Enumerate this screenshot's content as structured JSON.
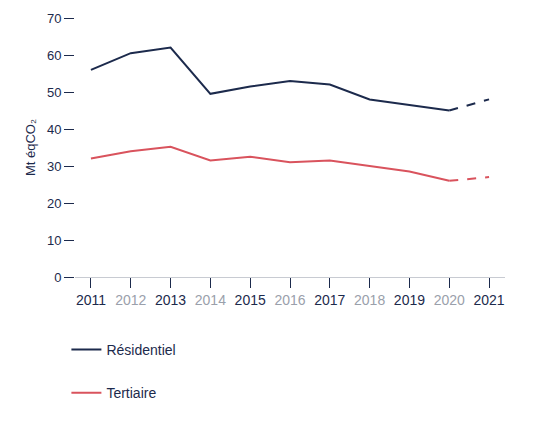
{
  "chart_data": {
    "type": "line",
    "y_label": "Mt éqCO₂",
    "x": [
      2011,
      2012,
      2013,
      2014,
      2015,
      2016,
      2017,
      2018,
      2019,
      2020,
      2021
    ],
    "xlim": [
      2010.6,
      2021.4
    ],
    "xticks": [
      2011,
      2012,
      2013,
      2014,
      2015,
      2016,
      2017,
      2018,
      2019,
      2020,
      2021
    ],
    "ylim": [
      0,
      70
    ],
    "yticks": [
      0,
      10,
      20,
      30,
      40,
      50,
      60,
      70
    ],
    "grid": false,
    "legend": "bottom",
    "series": [
      {
        "name": "Résidentiel",
        "color": "#1c2a4c",
        "line_style": "solid",
        "values": [
          56,
          60.5,
          62,
          49.5,
          51.5,
          53,
          52,
          48,
          46.5,
          45,
          null
        ]
      },
      {
        "name": "Résidentiel",
        "color": "#1c2a4c",
        "line_style": "dashed",
        "values": [
          null,
          null,
          null,
          null,
          null,
          null,
          null,
          null,
          null,
          45,
          48
        ]
      },
      {
        "name": "Tertiaire",
        "color": "#d9535d",
        "line_style": "solid",
        "values": [
          32,
          34,
          35.2,
          31.5,
          32.5,
          31,
          31.5,
          30,
          28.5,
          26,
          null
        ]
      },
      {
        "name": "Tertiaire",
        "color": "#d9535d",
        "line_style": "dashed",
        "values": [
          null,
          null,
          null,
          null,
          null,
          null,
          null,
          null,
          null,
          26,
          27
        ]
      }
    ]
  }
}
